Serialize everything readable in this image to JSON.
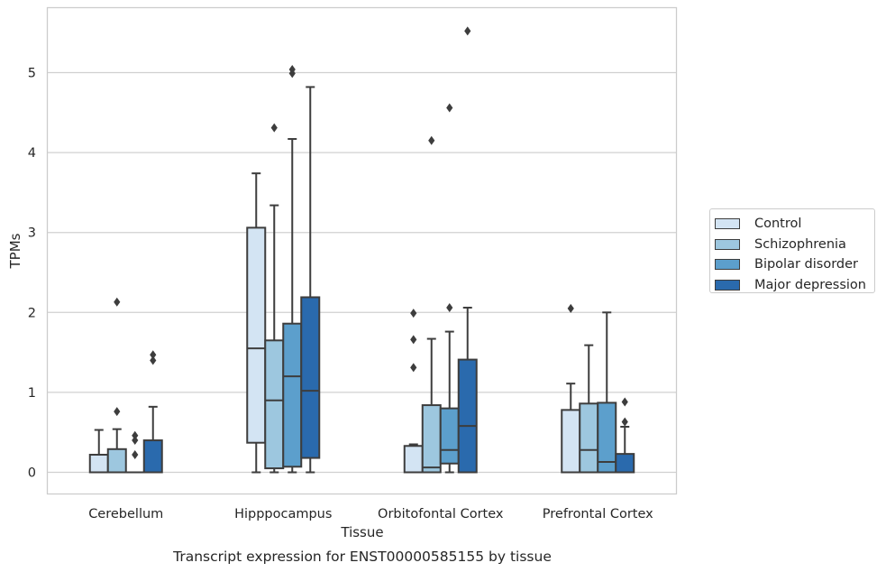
{
  "chart_data": {
    "type": "boxplot",
    "title": "Transcript expression for ENST00000585155 by tissue",
    "xlabel": "Tissue",
    "ylabel": "TPMs",
    "ylim": [
      -0.28,
      5.85
    ],
    "yticks": [
      0,
      1,
      2,
      3,
      4,
      5
    ],
    "grid": "horizontal",
    "legend_position": "right",
    "categories": [
      "Cerebellum",
      "Hipppocampus",
      "Orbitofontal Cortex",
      "Prefrontal Cortex"
    ],
    "series": [
      {
        "name": "Control",
        "color": "#d3e4f3",
        "boxes": [
          {
            "whislo": 0,
            "q1": 0,
            "med": 0,
            "q3": 0.22,
            "whishi": 0.53,
            "fliers": []
          },
          {
            "whislo": 0,
            "q1": 0.37,
            "med": 1.55,
            "q3": 3.06,
            "whishi": 3.74,
            "fliers": []
          },
          {
            "whislo": 0,
            "q1": 0,
            "med": 0,
            "q3": 0.33,
            "whishi": 0.35,
            "fliers": [
              1.31,
              1.66,
              1.99
            ]
          },
          {
            "whislo": 0,
            "q1": 0,
            "med": 0,
            "q3": 0.78,
            "whishi": 1.11,
            "fliers": [
              2.05
            ]
          }
        ]
      },
      {
        "name": "Schizophrenia",
        "color": "#9dc7df",
        "boxes": [
          {
            "whislo": 0,
            "q1": 0,
            "med": 0,
            "q3": 0.29,
            "whishi": 0.54,
            "fliers": [
              0.76,
              2.13
            ]
          },
          {
            "whislo": 0,
            "q1": 0.05,
            "med": 0.9,
            "q3": 1.65,
            "whishi": 3.34,
            "fliers": [
              4.31
            ]
          },
          {
            "whislo": 0,
            "q1": 0,
            "med": 0.06,
            "q3": 0.84,
            "whishi": 1.67,
            "fliers": [
              4.15
            ]
          },
          {
            "whislo": 0,
            "q1": 0,
            "med": 0.28,
            "q3": 0.86,
            "whishi": 1.59,
            "fliers": []
          }
        ]
      },
      {
        "name": "Bipolar disorder",
        "color": "#5c9fcc",
        "boxes": [
          {
            "whislo": 0,
            "q1": 0,
            "med": 0,
            "q3": 0,
            "whishi": 0,
            "fliers": [
              0.22,
              0.4,
              0.46
            ]
          },
          {
            "whislo": 0,
            "q1": 0.07,
            "med": 1.2,
            "q3": 1.86,
            "whishi": 4.17,
            "fliers": [
              4.99,
              5.04
            ]
          },
          {
            "whislo": 0,
            "q1": 0.11,
            "med": 0.28,
            "q3": 0.8,
            "whishi": 1.76,
            "fliers": [
              2.06,
              4.56
            ]
          },
          {
            "whislo": 0,
            "q1": 0,
            "med": 0.13,
            "q3": 0.87,
            "whishi": 2.0,
            "fliers": []
          }
        ]
      },
      {
        "name": "Major depression",
        "color": "#2a6aad",
        "boxes": [
          {
            "whislo": 0,
            "q1": 0,
            "med": 0,
            "q3": 0.4,
            "whishi": 0.82,
            "fliers": [
              1.4,
              1.47
            ]
          },
          {
            "whislo": 0,
            "q1": 0.18,
            "med": 1.02,
            "q3": 2.19,
            "whishi": 4.82,
            "fliers": []
          },
          {
            "whislo": 0,
            "q1": 0,
            "med": 0.58,
            "q3": 1.41,
            "whishi": 2.06,
            "fliers": [
              5.52
            ]
          },
          {
            "whislo": 0,
            "q1": 0,
            "med": 0,
            "q3": 0.23,
            "whishi": 0.57,
            "fliers": [
              0.63,
              0.88
            ]
          }
        ]
      }
    ]
  }
}
